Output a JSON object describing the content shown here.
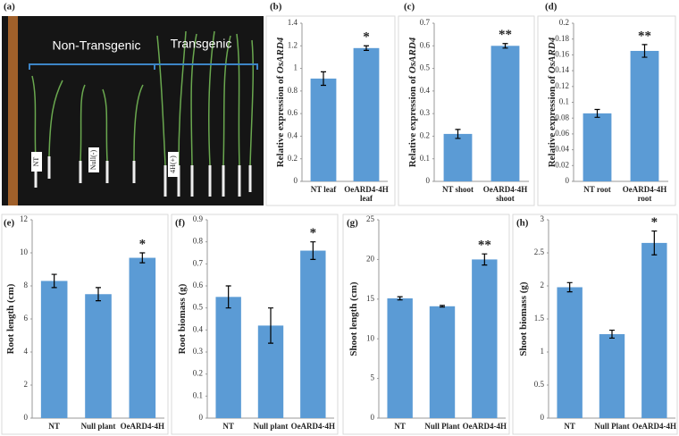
{
  "photo_panel": {
    "label": "(a)",
    "left_text": "Non-Transgenic",
    "right_text": "Transgenic",
    "tags": [
      "NT",
      "Null(-)",
      "4H(+)"
    ]
  },
  "chart_data": [
    {
      "type": "bar",
      "panel_label": "(b)",
      "ylabel": "Relative expression of",
      "ylabel_gene": "OsARD4",
      "categories": [
        "NT leaf",
        "OeARD4-4H leaf"
      ],
      "values": [
        0.91,
        1.18
      ],
      "errors": [
        0.06,
        0.02
      ],
      "significance": [
        null,
        "*"
      ],
      "color": "#5b9bd5",
      "ylim": [
        0,
        1.4
      ],
      "yticks": [
        0,
        0.2,
        0.4,
        0.6,
        0.8,
        1,
        1.2,
        1.4
      ]
    },
    {
      "type": "bar",
      "panel_label": "(c)",
      "ylabel": "Relative expression of",
      "ylabel_gene": "OsARD4",
      "categories": [
        "NT shoot",
        "OeARD4-4H shoot"
      ],
      "values": [
        0.21,
        0.6
      ],
      "errors": [
        0.02,
        0.01
      ],
      "significance": [
        null,
        "**"
      ],
      "color": "#5b9bd5",
      "ylim": [
        0,
        0.7
      ],
      "yticks": [
        0,
        0.1,
        0.2,
        0.3,
        0.4,
        0.5,
        0.6,
        0.7
      ]
    },
    {
      "type": "bar",
      "panel_label": "(d)",
      "ylabel": "Relative expression of",
      "ylabel_gene": "OsARD4",
      "categories": [
        "NT root",
        "OeARD4-4H root"
      ],
      "values": [
        0.086,
        0.165
      ],
      "errors": [
        0.005,
        0.008
      ],
      "significance": [
        null,
        "**"
      ],
      "color": "#5b9bd5",
      "ylim": [
        0,
        0.2
      ],
      "yticks": [
        0,
        0.02,
        0.04,
        0.06,
        0.08,
        0.1,
        0.12,
        0.14,
        0.16,
        0.18,
        0.2
      ]
    },
    {
      "type": "bar",
      "panel_label": "(e)",
      "ylabel": "Root length (cm)",
      "categories": [
        "NT",
        "Null plant",
        "OeARD4-4H"
      ],
      "values": [
        8.3,
        7.5,
        9.7
      ],
      "errors": [
        0.4,
        0.4,
        0.3
      ],
      "significance": [
        null,
        null,
        "*"
      ],
      "color": "#5b9bd5",
      "ylim": [
        0,
        12
      ],
      "yticks": [
        0,
        2,
        4,
        6,
        8,
        10,
        12
      ]
    },
    {
      "type": "bar",
      "panel_label": "(f)",
      "ylabel": "Root biomass (g)",
      "categories": [
        "NT",
        "Null plant",
        "OeARD4-4H"
      ],
      "values": [
        0.55,
        0.42,
        0.76
      ],
      "errors": [
        0.05,
        0.08,
        0.04
      ],
      "significance": [
        null,
        null,
        "*"
      ],
      "color": "#5b9bd5",
      "ylim": [
        0,
        0.9
      ],
      "yticks": [
        0,
        0.1,
        0.2,
        0.3,
        0.4,
        0.5,
        0.6,
        0.7,
        0.8,
        0.9
      ]
    },
    {
      "type": "bar",
      "panel_label": "(g)",
      "ylabel": "Shoot length (cm)",
      "categories": [
        "NT",
        "Null Plant",
        "OeARD4-4H"
      ],
      "values": [
        15.1,
        14.1,
        20
      ],
      "errors": [
        0.2,
        0.1,
        0.7
      ],
      "significance": [
        null,
        null,
        "**"
      ],
      "color": "#5b9bd5",
      "ylim": [
        0,
        25
      ],
      "yticks": [
        0,
        5,
        10,
        15,
        20,
        25
      ]
    },
    {
      "type": "bar",
      "panel_label": "(h)",
      "ylabel": "Shoot biomass (g)",
      "categories": [
        "NT",
        "Null Plant",
        "OeARD4-4H"
      ],
      "values": [
        1.98,
        1.27,
        2.65
      ],
      "errors": [
        0.07,
        0.06,
        0.18
      ],
      "significance": [
        null,
        null,
        "*"
      ],
      "color": "#5b9bd5",
      "ylim": [
        0,
        3
      ],
      "yticks": [
        0,
        0.5,
        1,
        1.5,
        2,
        2.5,
        3
      ]
    }
  ]
}
